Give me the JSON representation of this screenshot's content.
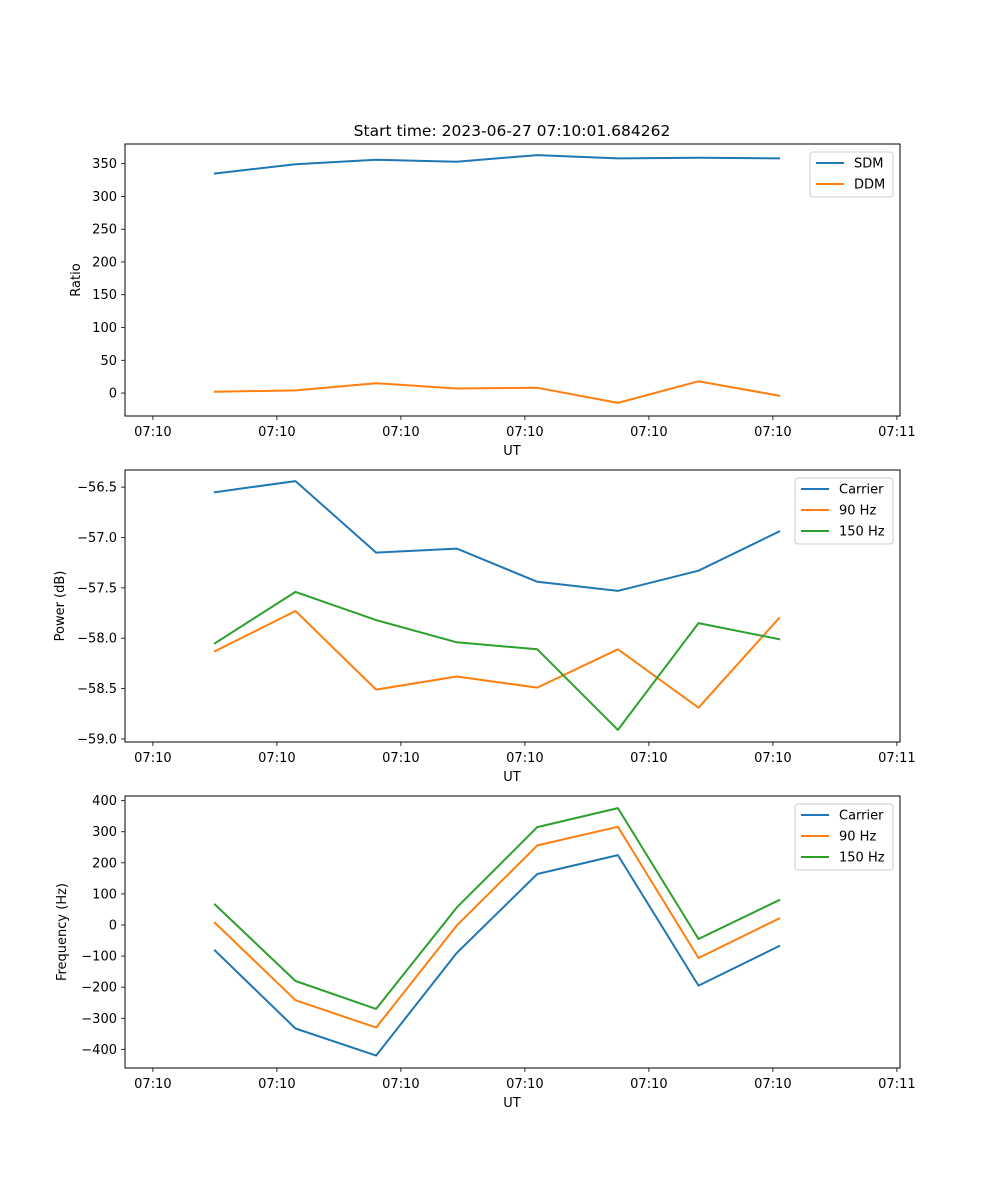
{
  "figure": {
    "title": "Start time: 2023-06-27 07:10:01.684262"
  },
  "colors": {
    "blue": "#1f77b4",
    "orange": "#ff7f0e",
    "green": "#2ca02c"
  },
  "chart_data": [
    {
      "type": "line",
      "title": "Start time: 2023-06-27 07:10:01.684262",
      "xlabel": "UT",
      "ylabel": "Ratio",
      "x_tick_labels": [
        "07:10",
        "07:10",
        "07:10",
        "07:10",
        "07:10",
        "07:10",
        "07:11"
      ],
      "y_ticks": [
        0,
        50,
        100,
        150,
        200,
        250,
        300,
        350
      ],
      "ylim": [
        -35,
        380
      ],
      "legend": "top-right",
      "grid": false,
      "series": [
        {
          "name": "SDM",
          "color": "#1f77b4",
          "values": [
            335,
            349,
            356,
            353,
            363,
            358,
            359,
            358
          ]
        },
        {
          "name": "DDM",
          "color": "#ff7f0e",
          "values": [
            2,
            4,
            15,
            7,
            8,
            -15,
            18,
            -4
          ]
        }
      ]
    },
    {
      "type": "line",
      "xlabel": "UT",
      "ylabel": "Power (dB)",
      "x_tick_labels": [
        "07:10",
        "07:10",
        "07:10",
        "07:10",
        "07:10",
        "07:10",
        "07:11"
      ],
      "y_ticks": [
        -56.5,
        -57.0,
        -57.5,
        -58.0,
        -58.5,
        -59.0
      ],
      "y_tick_labels": [
        "−56.5",
        "−57.0",
        "−57.5",
        "−58.0",
        "−58.5",
        "−59.0"
      ],
      "ylim": [
        -59.03,
        -56.33
      ],
      "legend": "top-right",
      "grid": false,
      "series": [
        {
          "name": "Carrier",
          "color": "#1f77b4",
          "values": [
            -56.55,
            -56.44,
            -57.15,
            -57.11,
            -57.44,
            -57.53,
            -57.33,
            -56.94
          ]
        },
        {
          "name": "90 Hz",
          "color": "#ff7f0e",
          "values": [
            -58.13,
            -57.73,
            -58.51,
            -58.38,
            -58.49,
            -58.11,
            -58.69,
            -57.8
          ]
        },
        {
          "name": "150 Hz",
          "color": "#2ca02c",
          "values": [
            -58.05,
            -57.54,
            -57.82,
            -58.04,
            -58.11,
            -58.91,
            -57.85,
            -58.01
          ]
        }
      ]
    },
    {
      "type": "line",
      "xlabel": "UT",
      "ylabel": "Frequency (Hz)",
      "x_tick_labels": [
        "07:10",
        "07:10",
        "07:10",
        "07:10",
        "07:10",
        "07:10",
        "07:11"
      ],
      "y_ticks": [
        400,
        300,
        200,
        100,
        0,
        -100,
        -200,
        -300,
        -400
      ],
      "y_tick_labels": [
        "400",
        "300",
        "200",
        "100",
        "0",
        "−100",
        "−200",
        "−300",
        "−400"
      ],
      "ylim": [
        -460,
        415
      ],
      "legend": "top-right",
      "grid": false,
      "series": [
        {
          "name": "Carrier",
          "color": "#1f77b4",
          "values": [
            -82,
            -333,
            -420,
            -90,
            164,
            225,
            -195,
            -68
          ]
        },
        {
          "name": "90 Hz",
          "color": "#ff7f0e",
          "values": [
            7,
            -242,
            -330,
            -2,
            256,
            316,
            -106,
            21
          ]
        },
        {
          "name": "150 Hz",
          "color": "#2ca02c",
          "values": [
            66,
            -180,
            -270,
            56,
            315,
            376,
            -45,
            80
          ]
        }
      ]
    }
  ]
}
